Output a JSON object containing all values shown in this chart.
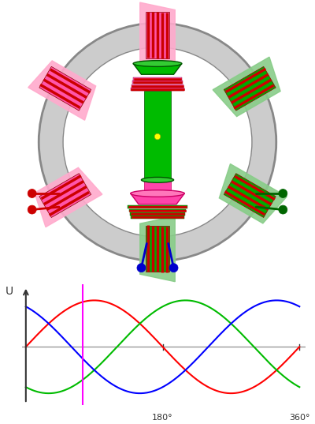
{
  "fig_width": 4.0,
  "fig_height": 5.37,
  "dpi": 100,
  "bg_color": "#ffffff",
  "ring_outer_r": 0.88,
  "ring_inner_r": 0.7,
  "ring_color": "#cccccc",
  "ring_edge": "#888888",
  "rotor_green": "#00bb00",
  "rotor_pink": "#ff44aa",
  "coil_pink_front": "#ff55aa",
  "coil_pink_back": "#ffaacc",
  "coil_green_front": "#00aa00",
  "coil_green_back": "#88cc88",
  "coil_red_stripe": "#cc0000",
  "yellow_dot": "#ffff00",
  "red_pin": "#cc0000",
  "green_pin": "#006600",
  "blue_pin": "#0000cc",
  "red_color": "#ff0000",
  "green_color": "#00bb00",
  "blue_color": "#0000ff",
  "magenta_color": "#ff00ff",
  "zero_line_color": "#999999",
  "axis_color": "#333333",
  "label_U": "U",
  "label_180": "180°",
  "label_360": "360°",
  "magenta_line_deg": 75
}
